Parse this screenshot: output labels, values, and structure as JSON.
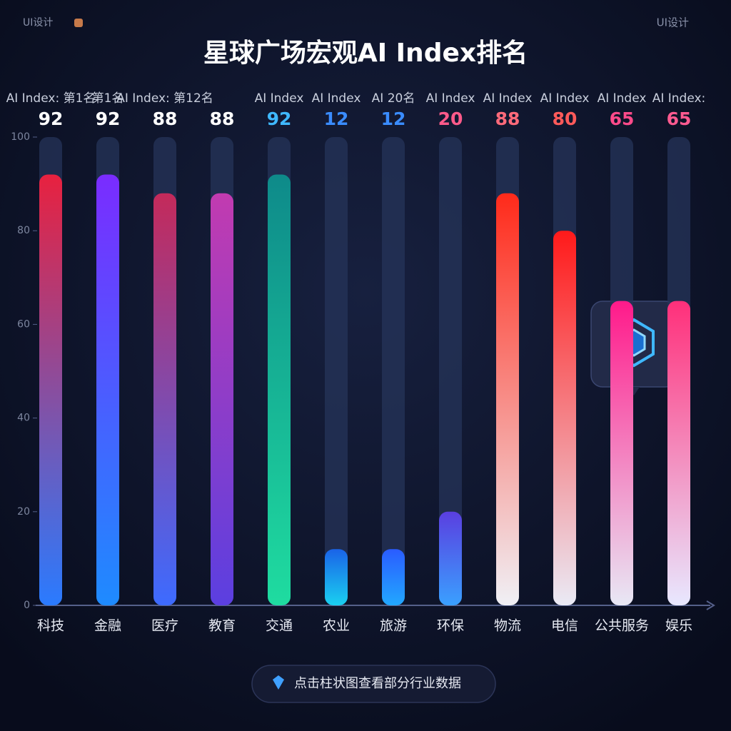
{
  "header": {
    "left": "UI设计",
    "right": "UI设计"
  },
  "chart_data": {
    "type": "bar",
    "title": "星球广场宏观AI Index排名",
    "categories": [
      "科技",
      "金融",
      "医疗",
      "教育",
      "交通",
      "农业",
      "旅游",
      "环保",
      "物流",
      "电信",
      "公共服务",
      "娱乐"
    ],
    "rank_labels": [
      "AI Index: 第1名",
      "第1名",
      "AI Index: 第12名",
      "",
      "AI Index",
      "AI Index",
      "AI 20名",
      "AI Index",
      "AI Index",
      "AI Index",
      "AI Index",
      "AI Index:"
    ],
    "values": [
      92,
      92,
      88,
      88,
      92,
      12,
      12,
      20,
      88,
      80,
      65,
      65
    ],
    "colors": [
      "#e8213f",
      "#7a2cff",
      "#c42a5a",
      "#c23bb0",
      "#0e8a8a",
      "#1a63e8",
      "#2a5cff",
      "#5a3fe0",
      "#ff2a1a",
      "#ff1a1a",
      "#ff1a8a",
      "#ff2f7a"
    ],
    "colors_bottom": [
      "#2a7bff",
      "#1e8bff",
      "#3d6bff",
      "#5b3fe0",
      "#1fdca0",
      "#1ad0f0",
      "#22a8ff",
      "#3aa0ff",
      "#f0f0f5",
      "#eaeaf5",
      "#e8e8f5",
      "#e8e8ff"
    ],
    "label_colors": [
      "#ffffff",
      "#ffffff",
      "#ffffff",
      "#ffffff",
      "#3fb8ff",
      "#3a8cff",
      "#3a8cff",
      "#ff5a8a",
      "#ff6a7a",
      "#ff5a5a",
      "#ff4a8a",
      "#ff5a90"
    ],
    "ylim": [
      0,
      100
    ],
    "yticks": [
      0,
      20,
      40,
      60,
      80,
      100
    ]
  },
  "button": {
    "label": "点击柱状图查看部分行业数据"
  }
}
